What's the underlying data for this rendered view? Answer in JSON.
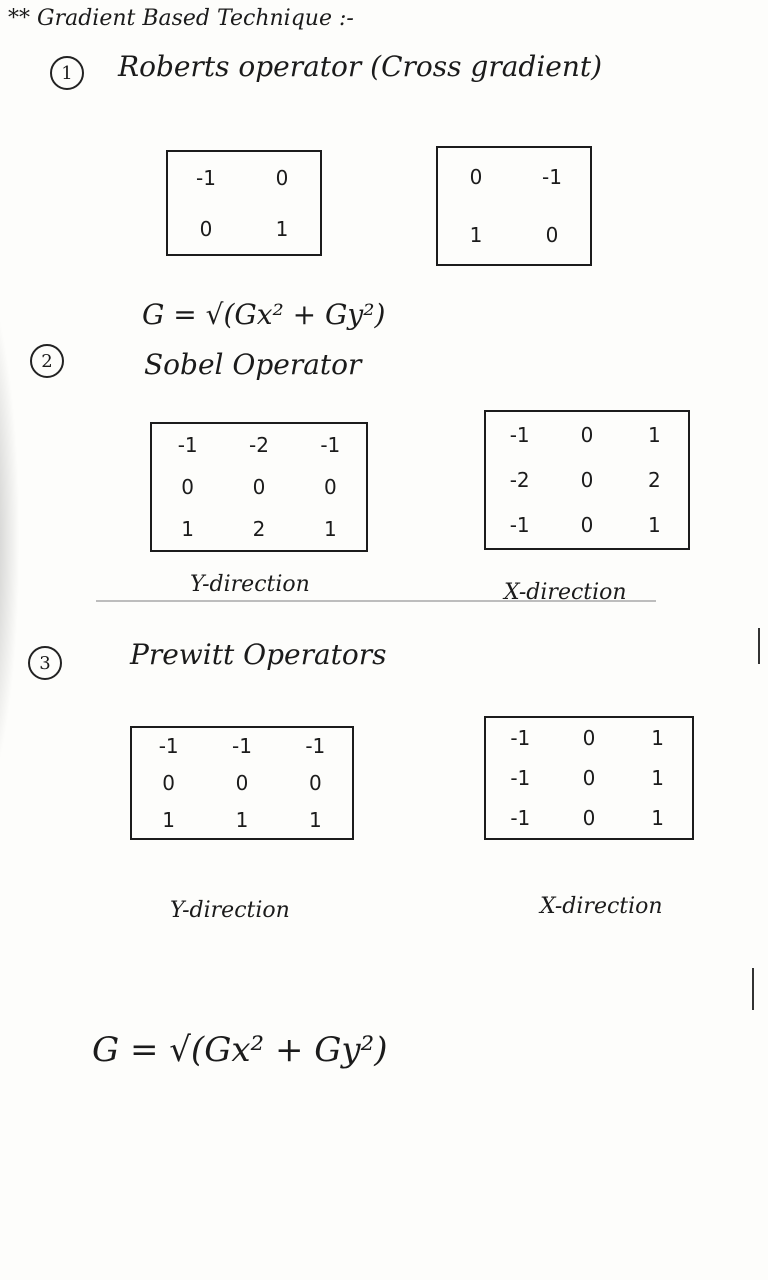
{
  "header": {
    "heading": "** Gradient Based Technique :-"
  },
  "roberts": {
    "number": "1",
    "title": "Roberts operator (Cross gradient)",
    "kernel_a": [
      "-1",
      "0",
      "0",
      "1"
    ],
    "kernel_b": [
      "0",
      "-1",
      "1",
      "0"
    ],
    "formula": "G = √(Gx² + Gy²)"
  },
  "sobel": {
    "number": "2",
    "title": "Sobel Operator",
    "y_kernel": [
      "-1",
      "-2",
      "-1",
      "0",
      "0",
      "0",
      "1",
      "2",
      "1"
    ],
    "x_kernel": [
      "-1",
      "0",
      "1",
      "-2",
      "0",
      "2",
      "-1",
      "0",
      "1"
    ],
    "y_caption": "Y-direction",
    "x_caption": "X-direction"
  },
  "prewitt": {
    "number": "3",
    "title": "Prewitt Operators",
    "y_kernel": [
      "-1",
      "-1",
      "-1",
      "0",
      "0",
      "0",
      "1",
      "1",
      "1"
    ],
    "x_kernel": [
      "-1",
      "0",
      "1",
      "-1",
      "0",
      "1",
      "-1",
      "0",
      "1"
    ],
    "y_caption": "Y-direction",
    "x_caption": "X-direction",
    "formula": "G = √(Gx² + Gy²)"
  }
}
